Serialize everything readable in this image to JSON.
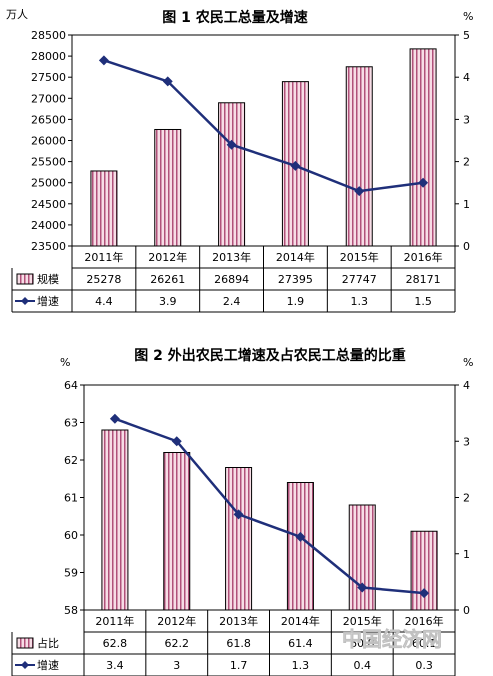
{
  "chart_data": [
    {
      "type": "bar",
      "title": "图 1 农民工总量及增速",
      "left_unit": "万人",
      "right_unit": "%",
      "categories": [
        "2011年",
        "2012年",
        "2013年",
        "2014年",
        "2015年",
        "2016年"
      ],
      "series": [
        {
          "name": "规模",
          "type": "bar",
          "axis": "left",
          "values": [
            25278,
            26261,
            26894,
            27395,
            27747,
            28171
          ]
        },
        {
          "name": "增速",
          "type": "line",
          "axis": "right",
          "values": [
            4.4,
            3.9,
            2.4,
            1.9,
            1.3,
            1.5
          ]
        }
      ],
      "ylim_left": [
        23500,
        28500
      ],
      "yticks_left": [
        "28500",
        "28000",
        "27500",
        "27000",
        "26500",
        "26000",
        "25500",
        "25000",
        "24500",
        "24000",
        "23500"
      ],
      "ylim_right": [
        0,
        5
      ],
      "yticks_right": [
        "5",
        "4",
        "3",
        "2",
        "1",
        "0"
      ],
      "table_values": [
        [
          "25278",
          "26261",
          "26894",
          "27395",
          "27747",
          "28171"
        ],
        [
          "4.4",
          "3.9",
          "2.4",
          "1.9",
          "1.3",
          "1.5"
        ]
      ]
    },
    {
      "type": "bar",
      "title": "图 2 外出农民工增速及占农民工总量的比重",
      "left_unit": "%",
      "right_unit": "%",
      "categories": [
        "2011年",
        "2012年",
        "2013年",
        "2014年",
        "2015年",
        "2016年"
      ],
      "series": [
        {
          "name": "占比",
          "type": "bar",
          "axis": "left",
          "values": [
            62.8,
            62.2,
            61.8,
            61.4,
            60.8,
            60.1
          ]
        },
        {
          "name": "增速",
          "type": "line",
          "axis": "right",
          "values": [
            3.4,
            3,
            1.7,
            1.3,
            0.4,
            0.3
          ]
        }
      ],
      "ylim_left": [
        58,
        64
      ],
      "yticks_left": [
        "64",
        "63",
        "62",
        "61",
        "60",
        "59",
        "58"
      ],
      "ylim_right": [
        0,
        4
      ],
      "yticks_right": [
        "4",
        "3",
        "2",
        "1",
        "0"
      ],
      "table_values": [
        [
          "62.8",
          "62.2",
          "61.8",
          "61.4",
          "60.8",
          "60.1"
        ],
        [
          "3.4",
          "3",
          "1.7",
          "1.3",
          "0.4",
          "0.3"
        ]
      ]
    }
  ],
  "colors": {
    "bar_fill": "#f7dde6",
    "bar_stripe": "#b0517a",
    "line": "#1f2f7a"
  },
  "watermark": "中国经济网"
}
